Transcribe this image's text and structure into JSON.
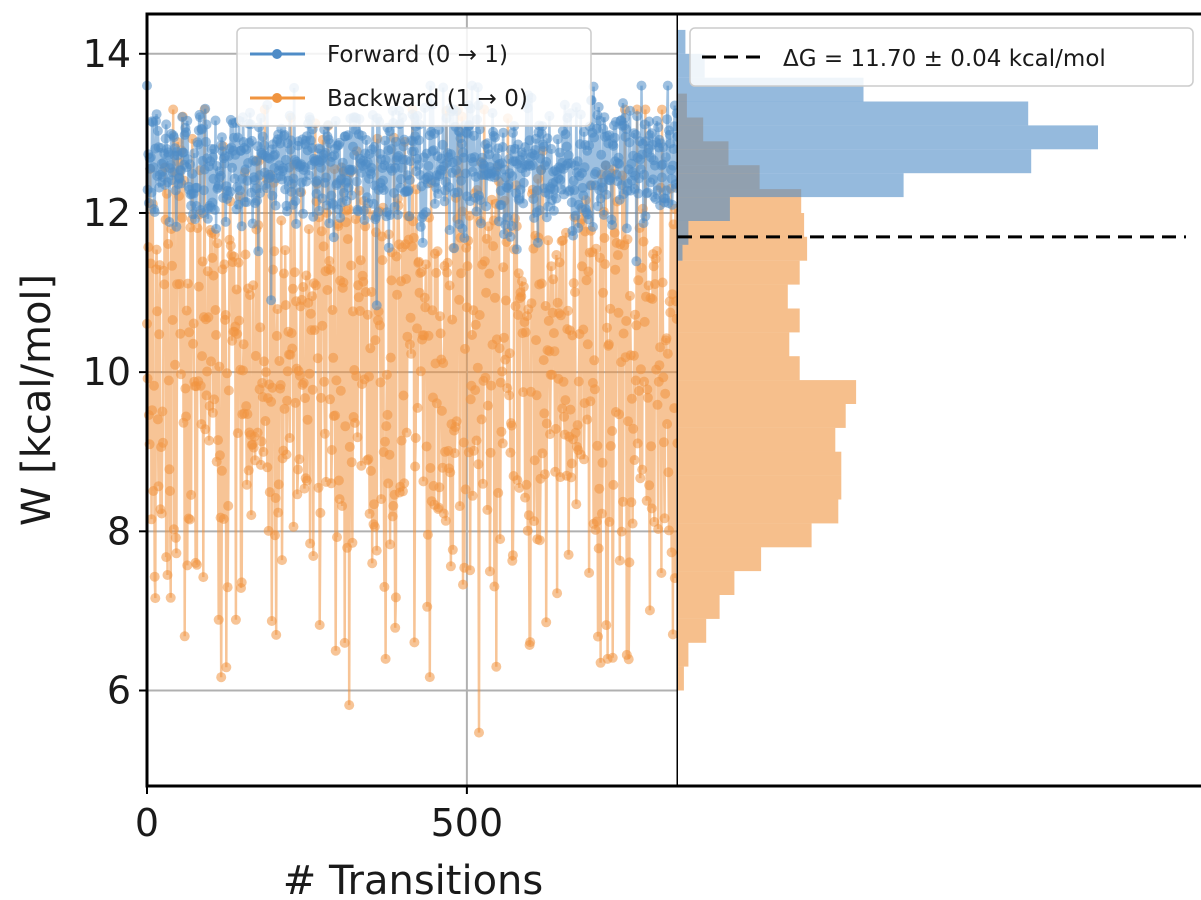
{
  "chart_data": [
    {
      "type": "line",
      "ylabel": "W [kcal/mol]",
      "xlabel": "# Transitions",
      "xlim": [
        0,
        830
      ],
      "ylim": [
        4.8,
        14.5
      ],
      "xticks": [
        0,
        500
      ],
      "yticks": [
        6,
        8,
        10,
        12,
        14
      ],
      "xtick_labels": [
        "0",
        "500"
      ],
      "ytick_labels": [
        "6",
        "8",
        "10",
        "12",
        "14"
      ],
      "grid": true,
      "legend_position": "top-center",
      "series": [
        {
          "name": "Forward (0 → 1)",
          "color": "#4f8cc7",
          "points": 830,
          "mean": 12.6,
          "spread": 0.42,
          "min": 8.4,
          "max": 13.6
        },
        {
          "name": "Backward (1 → 0)",
          "color": "#f0943f",
          "points": 830,
          "mean": 9.7,
          "spread": 1.5,
          "min": 5.4,
          "max": 13.3
        }
      ]
    },
    {
      "type": "bar",
      "orientation": "horizontal",
      "title": "",
      "xlabel": "",
      "ylabel": "",
      "shared_y_with": "W [kcal/mol]",
      "legend_position": "top-right",
      "legend_label": "ΔG = 11.70 ± 0.04 kcal/mol",
      "reference_line_y": 11.7,
      "series": [
        {
          "name": "Forward (0 → 1)",
          "color": "#4f8cc7",
          "bins": [
            {
              "y0": 11.4,
              "y1": 11.6,
              "count": 3
            },
            {
              "y0": 11.6,
              "y1": 11.9,
              "count": 7
            },
            {
              "y0": 11.9,
              "y1": 12.2,
              "count": 35
            },
            {
              "y0": 12.2,
              "y1": 12.5,
              "count": 152
            },
            {
              "y0": 12.5,
              "y1": 12.8,
              "count": 238
            },
            {
              "y0": 12.8,
              "y1": 13.1,
              "count": 283
            },
            {
              "y0": 13.1,
              "y1": 13.4,
              "count": 236
            },
            {
              "y0": 13.4,
              "y1": 13.7,
              "count": 125
            },
            {
              "y0": 13.7,
              "y1": 14.0,
              "count": 18
            },
            {
              "y0": 14.0,
              "y1": 14.3,
              "count": 5
            }
          ]
        },
        {
          "name": "Backward (1 → 0)",
          "color": "#f0943f",
          "bins": [
            {
              "y0": 6.0,
              "y1": 6.3,
              "count": 4
            },
            {
              "y0": 6.3,
              "y1": 6.6,
              "count": 7
            },
            {
              "y0": 6.6,
              "y1": 6.9,
              "count": 19
            },
            {
              "y0": 6.9,
              "y1": 7.2,
              "count": 28
            },
            {
              "y0": 7.2,
              "y1": 7.5,
              "count": 38
            },
            {
              "y0": 7.5,
              "y1": 7.8,
              "count": 56
            },
            {
              "y0": 7.8,
              "y1": 8.1,
              "count": 90
            },
            {
              "y0": 8.1,
              "y1": 8.4,
              "count": 108
            },
            {
              "y0": 8.4,
              "y1": 8.7,
              "count": 110
            },
            {
              "y0": 8.7,
              "y1": 9.0,
              "count": 110
            },
            {
              "y0": 9.0,
              "y1": 9.3,
              "count": 106
            },
            {
              "y0": 9.3,
              "y1": 9.6,
              "count": 113
            },
            {
              "y0": 9.6,
              "y1": 9.9,
              "count": 120
            },
            {
              "y0": 9.9,
              "y1": 10.2,
              "count": 82
            },
            {
              "y0": 10.2,
              "y1": 10.5,
              "count": 75
            },
            {
              "y0": 10.5,
              "y1": 10.8,
              "count": 82
            },
            {
              "y0": 10.8,
              "y1": 11.1,
              "count": 74
            },
            {
              "y0": 11.1,
              "y1": 11.4,
              "count": 82
            },
            {
              "y0": 11.4,
              "y1": 11.7,
              "count": 87
            },
            {
              "y0": 11.7,
              "y1": 12.0,
              "count": 85
            },
            {
              "y0": 12.0,
              "y1": 12.3,
              "count": 83
            },
            {
              "y0": 12.3,
              "y1": 12.6,
              "count": 55
            },
            {
              "y0": 12.6,
              "y1": 12.9,
              "count": 34
            },
            {
              "y0": 12.9,
              "y1": 13.2,
              "count": 17
            },
            {
              "y0": 13.2,
              "y1": 13.5,
              "count": 6
            }
          ]
        }
      ]
    }
  ]
}
